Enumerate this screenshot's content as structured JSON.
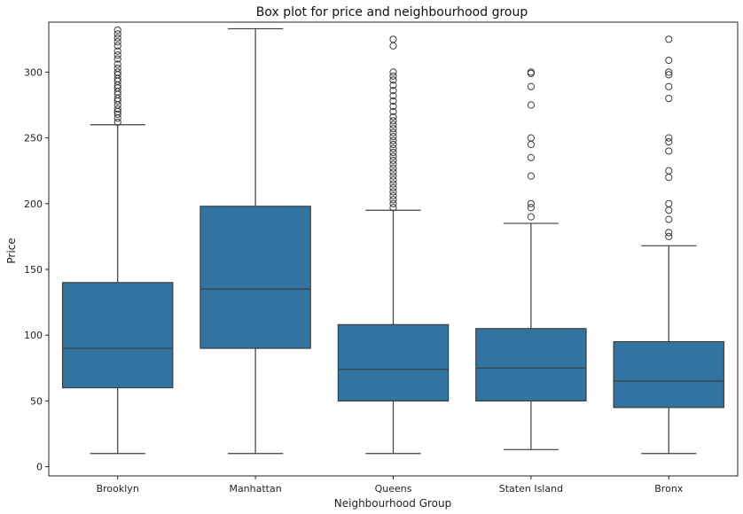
{
  "chart_data": {
    "type": "box",
    "title": "Box plot for  price and neighbourhood group",
    "xlabel": "Neighbourhood Group",
    "ylabel": "Price",
    "ylim": [
      -7,
      338
    ],
    "yticks": [
      0,
      50,
      100,
      150,
      200,
      250,
      300
    ],
    "grid": false,
    "box_color": "#3274a1",
    "line_color": "#3d3d3d",
    "categories": [
      "Brooklyn",
      "Manhattan",
      "Queens",
      "Staten Island",
      "Bronx"
    ],
    "boxes": [
      {
        "name": "Brooklyn",
        "whisker_low": 10,
        "q1": 60,
        "median": 90,
        "q3": 140,
        "whisker_high": 260,
        "outliers": [
          262,
          265,
          268,
          270,
          272,
          275,
          278,
          280,
          283,
          285,
          288,
          290,
          293,
          295,
          298,
          300,
          303,
          306,
          310,
          313,
          316,
          320,
          323,
          326,
          329,
          332
        ]
      },
      {
        "name": "Manhattan",
        "whisker_low": 10,
        "q1": 90,
        "median": 135,
        "q3": 198,
        "whisker_high": 333,
        "outliers": []
      },
      {
        "name": "Queens",
        "whisker_low": 10,
        "q1": 50,
        "median": 74,
        "q3": 108,
        "whisker_high": 195,
        "outliers": [
          197,
          200,
          203,
          206,
          209,
          212,
          215,
          218,
          221,
          224,
          227,
          230,
          233,
          236,
          239,
          242,
          245,
          248,
          251,
          254,
          257,
          260,
          263,
          266,
          270,
          274,
          278,
          282,
          286,
          290,
          294,
          297,
          300,
          320,
          325
        ]
      },
      {
        "name": "Staten Island",
        "whisker_low": 13,
        "q1": 50,
        "median": 75,
        "q3": 105,
        "whisker_high": 185,
        "outliers": [
          190,
          197,
          200,
          221,
          235,
          245,
          250,
          275,
          289,
          299,
          300
        ]
      },
      {
        "name": "Bronx",
        "whisker_low": 10,
        "q1": 45,
        "median": 65,
        "q3": 95,
        "whisker_high": 168,
        "outliers": [
          175,
          178,
          188,
          195,
          200,
          220,
          225,
          240,
          247,
          250,
          280,
          289,
          298,
          300,
          309,
          325
        ]
      }
    ]
  }
}
